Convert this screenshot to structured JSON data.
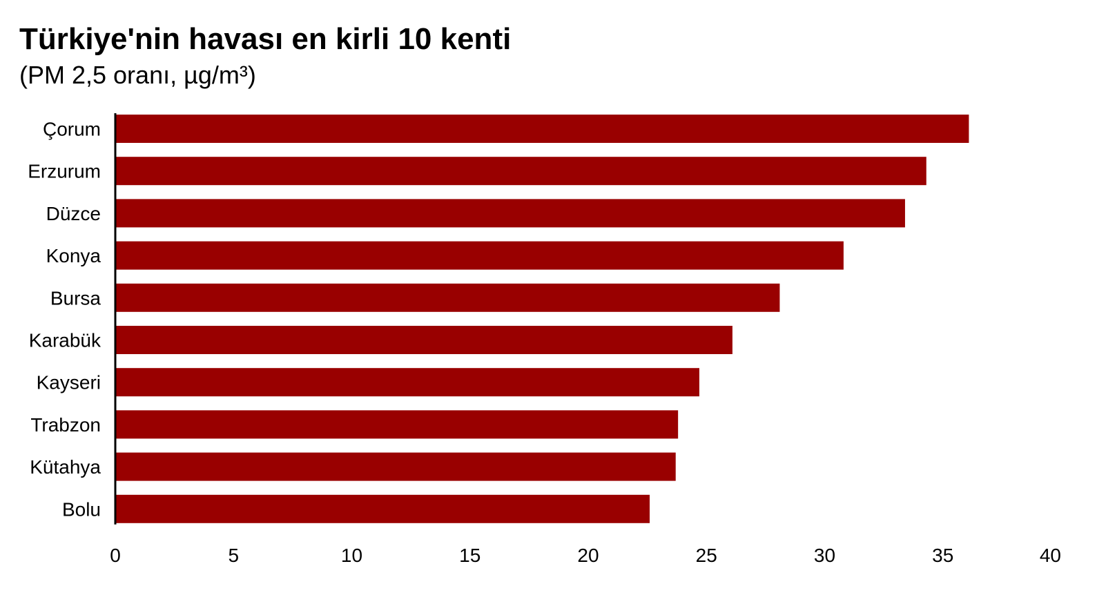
{
  "chart_data": {
    "type": "bar",
    "orientation": "horizontal",
    "title": "Türkiye'nin havası en kirli 10 kenti",
    "subtitle": "(PM 2,5 oranı, µg/m³)",
    "categories": [
      "Çorum",
      "Erzurum",
      "Düzce",
      "Konya",
      "Bursa",
      "Karabük",
      "Kayseri",
      "Trabzon",
      "Kütahya",
      "Bolu"
    ],
    "values": [
      36.1,
      34.3,
      33.4,
      30.8,
      28.1,
      26.1,
      24.7,
      23.8,
      23.7,
      22.6
    ],
    "xlim": [
      0,
      40
    ],
    "xticks": [
      0,
      5,
      10,
      15,
      20,
      25,
      30,
      35,
      40
    ],
    "bar_color": "#990000",
    "grid": false
  }
}
